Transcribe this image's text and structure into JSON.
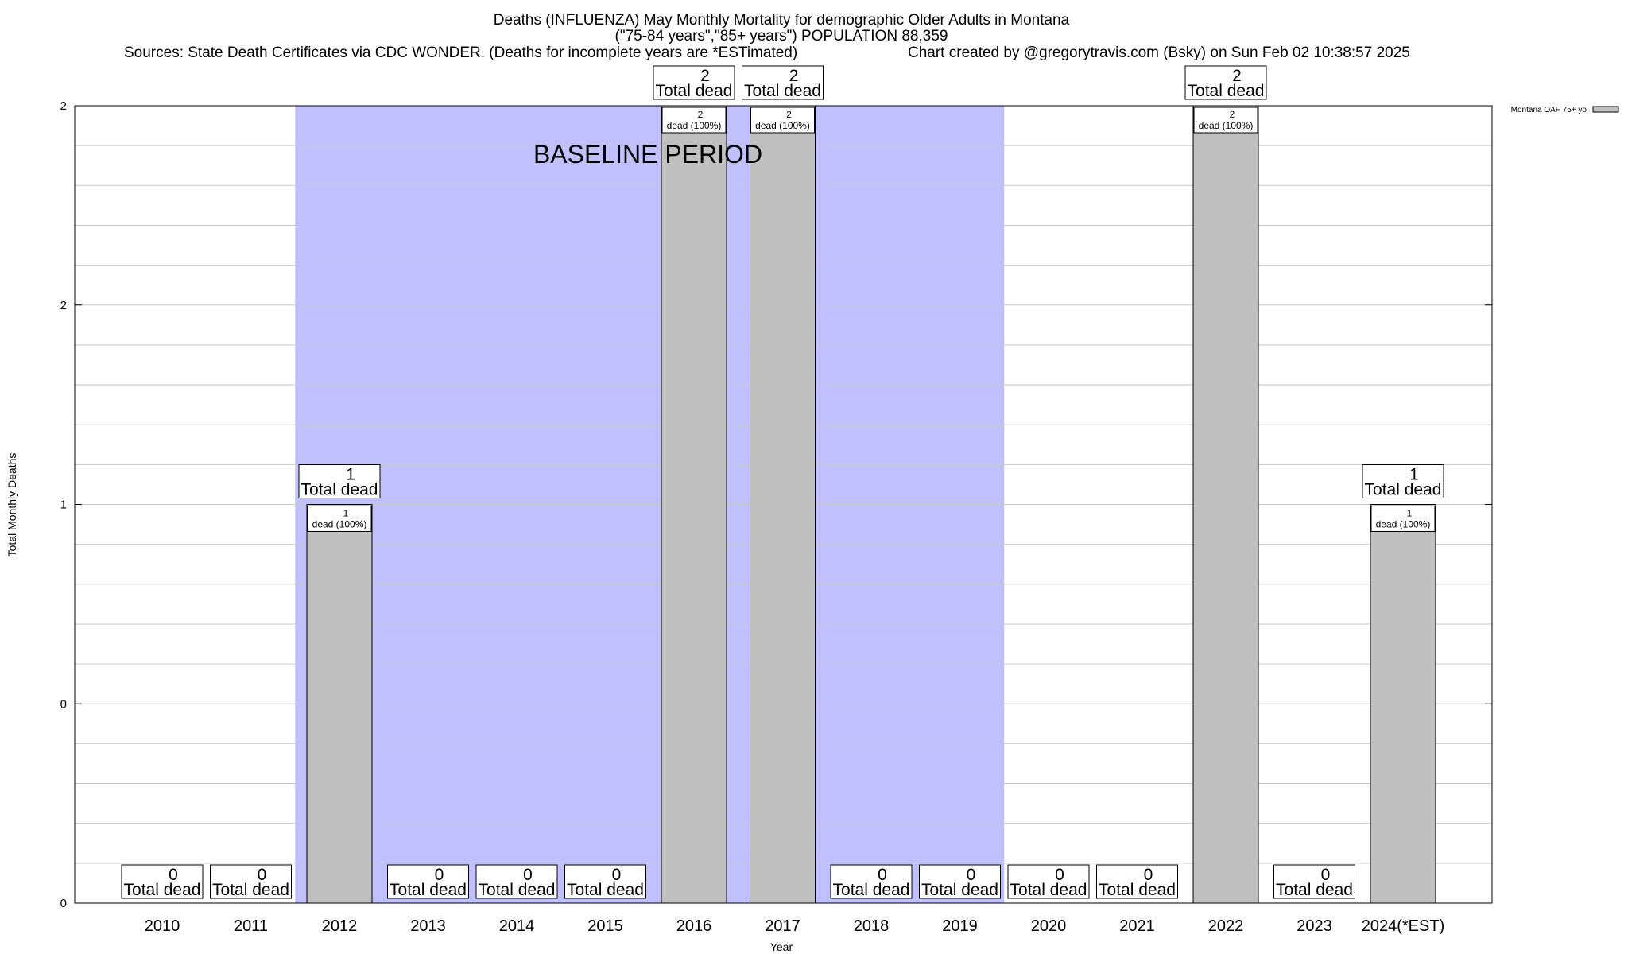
{
  "chart_data": {
    "type": "bar",
    "title": "Deaths (INFLUENZA) May Monthly Mortality for demographic Older Adults in Montana",
    "subtitle": "(\"75-84 years\",\"85+ years\") POPULATION 88,359",
    "sources": "Sources: State Death Certificates via CDC WONDER. (Deaths for incomplete years are *ESTimated)",
    "credit": "Chart created by @gregorytravis.com (Bsky) on Sun Feb 02 10:38:57 2025",
    "xlabel": "Year",
    "ylabel": "Total Monthly Deaths",
    "y_tick_labels": [
      "0",
      "0",
      "1",
      "2",
      "2"
    ],
    "ylim": [
      0,
      2
    ],
    "grid": true,
    "legend_position": "top-right",
    "baseline_label": "BASELINE PERIOD",
    "baseline_range": [
      "2012",
      "2019"
    ],
    "categories": [
      "2010",
      "2011",
      "2012",
      "2013",
      "2014",
      "2015",
      "2016",
      "2017",
      "2018",
      "2019",
      "2020",
      "2021",
      "2022",
      "2023",
      "2024(*EST)"
    ],
    "series": [
      {
        "name": "Montana OAF 75+ yo",
        "color": "#c0c0c0",
        "values": [
          0,
          0,
          1,
          0,
          0,
          0,
          2,
          2,
          0,
          0,
          0,
          0,
          2,
          0,
          1
        ]
      }
    ],
    "total_labels": [
      "0",
      "0",
      "1",
      "0",
      "0",
      "0",
      "2",
      "2",
      "0",
      "0",
      "0",
      "0",
      "2",
      "0",
      "1"
    ],
    "total_label_suffix": "Total dead",
    "inner_labels": [
      "",
      "",
      "1",
      "",
      "",
      "",
      "2",
      "2",
      "",
      "",
      "",
      "",
      "2",
      "",
      "1"
    ],
    "inner_label_suffix": "dead (100%)",
    "baseline_color": "#c0c0ff"
  }
}
